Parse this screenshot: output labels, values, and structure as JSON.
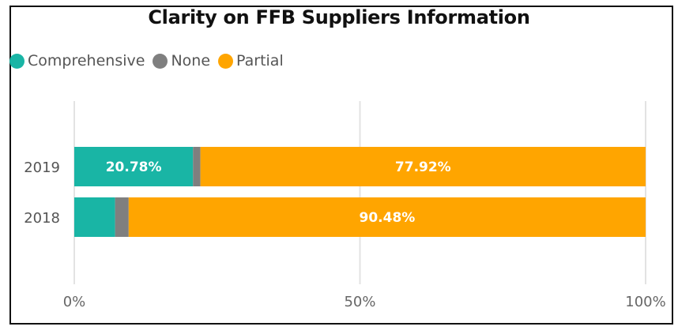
{
  "chart_data": {
    "type": "bar",
    "orientation": "horizontal",
    "stacked": "percent",
    "title": "Clarity on FFB Suppliers Information",
    "categories": [
      "2019",
      "2018"
    ],
    "series": [
      {
        "name": "Comprehensive",
        "color": "#19B5A5",
        "values": [
          20.78,
          7.14
        ]
      },
      {
        "name": "None",
        "color": "#7F7F7F",
        "values": [
          1.3,
          2.38
        ]
      },
      {
        "name": "Partial",
        "color": "#FFA500",
        "values": [
          77.92,
          90.48
        ]
      }
    ],
    "data_labels": [
      {
        "category": "2019",
        "series": "Comprehensive",
        "text": "20.78%"
      },
      {
        "category": "2019",
        "series": "Partial",
        "text": "77.92%"
      },
      {
        "category": "2018",
        "series": "Partial",
        "text": "90.48%"
      }
    ],
    "x_ticks": [
      "0%",
      "50%",
      "100%"
    ],
    "xlim": [
      0,
      100
    ],
    "grid": true,
    "legend_position": "top-left"
  }
}
